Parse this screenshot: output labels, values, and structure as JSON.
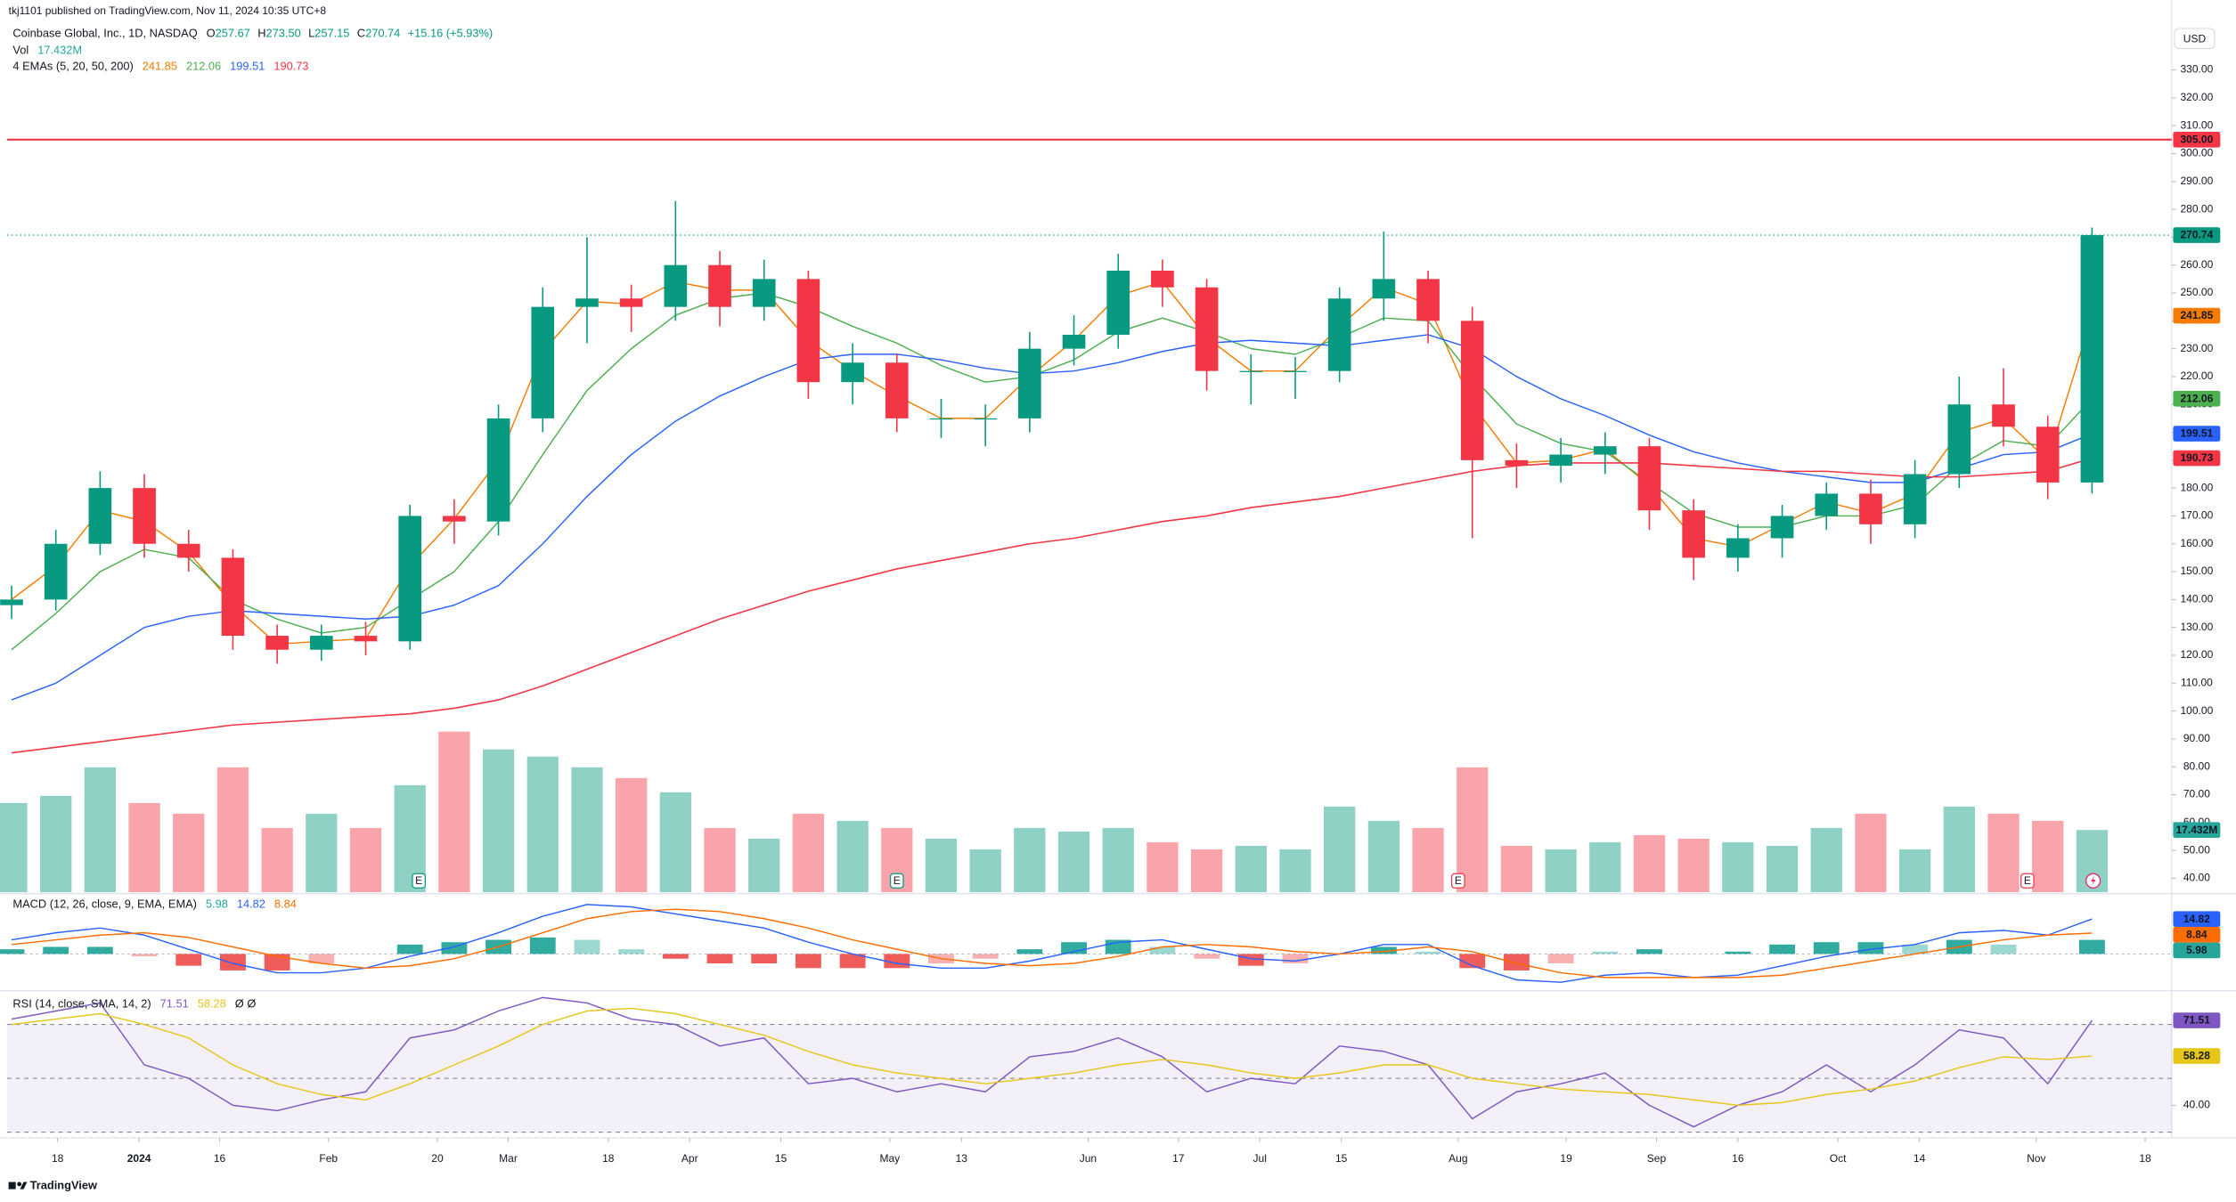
{
  "header": {
    "publisher": "tkj1101 published on TradingView.com, Nov 11, 2024 10:35 UTC+8",
    "symbol": "Coinbase Global, Inc., 1D, NASDAQ",
    "ohlc": [
      {
        "label": "O",
        "value": "257.67"
      },
      {
        "label": "H",
        "value": "273.50"
      },
      {
        "label": "L",
        "value": "257.15"
      },
      {
        "label": "C",
        "value": "270.74"
      }
    ],
    "change": "+15.16 (+5.93%)",
    "vol_label": "Vol",
    "ema_label": "4 EMAs (5, 20, 50, 200)",
    "currency": "USD",
    "brand": "TradingView"
  },
  "chart_data": [
    {
      "type": "candlestick",
      "x": [
        0,
        5,
        10,
        15,
        20,
        25,
        30,
        35,
        40,
        45,
        50,
        55,
        60,
        65,
        70,
        75,
        80,
        85,
        90,
        95,
        100,
        105,
        110,
        115,
        120,
        125,
        130,
        135,
        140,
        145,
        150,
        155,
        160,
        165,
        170,
        175,
        180,
        185,
        190,
        195,
        200,
        205,
        210,
        215,
        220,
        225,
        230,
        235
      ],
      "xlim": [
        -0.5,
        244
      ],
      "xticks": [
        {
          "value": 5.2,
          "label": "18"
        },
        {
          "value": 14.4,
          "label": "2024"
        },
        {
          "value": 23.5,
          "label": "16"
        },
        {
          "value": 35.8,
          "label": "Feb"
        },
        {
          "value": 48.1,
          "label": "20"
        },
        {
          "value": 56.1,
          "label": "Mar"
        },
        {
          "value": 67.4,
          "label": "18"
        },
        {
          "value": 76.6,
          "label": "Apr"
        },
        {
          "value": 86.9,
          "label": "15"
        },
        {
          "value": 99.2,
          "label": "May"
        },
        {
          "value": 107.3,
          "label": "13"
        },
        {
          "value": 121.6,
          "label": "Jun"
        },
        {
          "value": 131.8,
          "label": "17"
        },
        {
          "value": 141,
          "label": "Jul"
        },
        {
          "value": 150.2,
          "label": "15"
        },
        {
          "value": 163.4,
          "label": "Aug"
        },
        {
          "value": 175.6,
          "label": "19"
        },
        {
          "value": 185.8,
          "label": "Sep"
        },
        {
          "value": 195,
          "label": "16"
        },
        {
          "value": 206.3,
          "label": "Oct"
        },
        {
          "value": 215.5,
          "label": "14"
        },
        {
          "value": 228.7,
          "label": "Nov"
        },
        {
          "value": 241,
          "label": "18"
        }
      ],
      "open": [
        138,
        140,
        160,
        180,
        160,
        155,
        127,
        122,
        127,
        125,
        170,
        168,
        205,
        245,
        248,
        245,
        260,
        245,
        255,
        218,
        225,
        205,
        205,
        205,
        230,
        235,
        258,
        252,
        222,
        222,
        222,
        248,
        255,
        240,
        190,
        188,
        192,
        195,
        172,
        155,
        162,
        170,
        178,
        167,
        185,
        210,
        202,
        182
      ],
      "high": [
        145,
        165,
        186,
        185,
        165,
        158,
        131,
        131,
        132,
        174,
        176,
        210,
        252,
        270,
        253,
        283,
        265,
        262,
        258,
        232,
        228,
        212,
        210,
        236,
        242,
        264,
        262,
        255,
        228,
        227,
        252,
        272,
        258,
        245,
        196,
        198,
        200,
        198,
        176,
        167,
        174,
        182,
        183,
        190,
        220,
        223,
        206,
        273.5
      ],
      "low": [
        133,
        136,
        156,
        155,
        150,
        122,
        117,
        118,
        120,
        122,
        160,
        163,
        200,
        232,
        236,
        240,
        238,
        240,
        212,
        210,
        200,
        198,
        195,
        200,
        224,
        230,
        245,
        215,
        210,
        212,
        218,
        240,
        232,
        162,
        180,
        182,
        185,
        165,
        147,
        150,
        155,
        165,
        160,
        162,
        180,
        195,
        176,
        178
      ],
      "close": [
        140,
        160,
        180,
        160,
        155,
        127,
        122,
        127,
        125,
        170,
        168,
        205,
        245,
        248,
        245,
        260,
        245,
        255,
        218,
        225,
        205,
        205,
        205,
        230,
        235,
        258,
        252,
        222,
        222,
        222,
        248,
        255,
        240,
        190,
        188,
        192,
        195,
        172,
        155,
        162,
        170,
        178,
        167,
        185,
        210,
        202,
        182,
        270.74
      ],
      "up_color": "#089981",
      "down_color": "#f23645",
      "ylim": [
        35,
        351
      ],
      "yticks": [
        {
          "value": 40,
          "label": "40.00"
        },
        {
          "value": 50,
          "label": "50.00"
        },
        {
          "value": 60,
          "label": "60.00"
        },
        {
          "value": 70,
          "label": "70.00"
        },
        {
          "value": 80,
          "label": "80.00"
        },
        {
          "value": 90,
          "label": "90.00"
        },
        {
          "value": 100,
          "label": "100.00"
        },
        {
          "value": 110,
          "label": "110.00"
        },
        {
          "value": 120,
          "label": "120.00"
        },
        {
          "value": 130,
          "label": "130.00"
        },
        {
          "value": 140,
          "label": "140.00"
        },
        {
          "value": 150,
          "label": "150.00"
        },
        {
          "value": 160,
          "label": "160.00"
        },
        {
          "value": 170,
          "label": "170.00"
        },
        {
          "value": 180,
          "label": "180.00"
        },
        {
          "value": 190,
          "label": "190.00"
        },
        {
          "value": 200,
          "label": "200.00"
        },
        {
          "value": 210,
          "label": "210.00"
        },
        {
          "value": 220,
          "label": "220.00"
        },
        {
          "value": 230,
          "label": "230.00"
        },
        {
          "value": 240,
          "label": "240.00"
        },
        {
          "value": 250,
          "label": "250.00"
        },
        {
          "value": 260,
          "label": "260.00"
        },
        {
          "value": 270,
          "label": "270.00"
        },
        {
          "value": 280,
          "label": "280.00"
        },
        {
          "value": 290,
          "label": "290.00"
        },
        {
          "value": 300,
          "label": "300.00"
        },
        {
          "value": 310,
          "label": "310.00"
        },
        {
          "value": 320,
          "label": "320.00"
        },
        {
          "value": 330,
          "label": "330.00"
        }
      ],
      "grid": false,
      "series": [
        {
          "color": "#f57c00",
          "values": [
            140,
            152,
            172,
            168,
            157,
            138,
            124,
            125,
            126,
            152,
            169,
            190,
            229,
            247,
            246,
            254,
            251,
            251,
            233,
            222,
            213,
            205,
            205,
            220,
            233,
            249,
            254,
            234,
            222,
            222,
            238,
            252,
            246,
            210,
            189,
            190,
            194,
            181,
            162,
            159,
            167,
            175,
            171,
            178,
            200,
            205,
            190,
            241.85
          ]
        },
        {
          "color": "#4caf50",
          "values": [
            122,
            135,
            150,
            158,
            155,
            140,
            133,
            128,
            130,
            140,
            150,
            168,
            192,
            215,
            230,
            242,
            248,
            250,
            245,
            238,
            232,
            224,
            218,
            220,
            226,
            236,
            241,
            236,
            230,
            228,
            234,
            241,
            240,
            220,
            203,
            196,
            193,
            182,
            171,
            166,
            166,
            170,
            170,
            174,
            188,
            197,
            195,
            212.06
          ]
        },
        {
          "color": "#2962ff",
          "values": [
            104,
            110,
            120,
            130,
            134,
            136,
            135,
            134,
            133,
            134,
            138,
            145,
            160,
            177,
            192,
            204,
            213,
            220,
            226,
            228,
            228,
            226,
            223,
            221,
            222,
            225,
            229,
            232,
            233,
            232,
            231,
            233,
            235,
            230,
            220,
            212,
            206,
            199,
            193,
            189,
            186,
            184,
            182,
            182,
            187,
            192,
            193,
            199.51
          ]
        },
        {
          "color": "#f23645",
          "values": [
            85,
            87,
            89,
            91,
            93,
            95,
            96,
            97,
            98,
            99,
            101,
            104,
            109,
            115,
            121,
            127,
            133,
            138,
            143,
            147,
            151,
            154,
            157,
            160,
            162,
            165,
            168,
            170,
            173,
            175,
            177,
            180,
            183,
            186,
            188,
            189,
            189,
            189,
            188,
            187,
            186,
            186,
            185,
            184,
            184,
            185,
            186,
            190.73
          ]
        }
      ],
      "volume": {
        "values": [
          25,
          27,
          35,
          25,
          22,
          35,
          18,
          22,
          18,
          30,
          45,
          40,
          38,
          35,
          32,
          28,
          18,
          15,
          22,
          20,
          18,
          15,
          12,
          18,
          17,
          18,
          14,
          12,
          13,
          12,
          24,
          20,
          18,
          35,
          13,
          12,
          14,
          16,
          15,
          14,
          13,
          18,
          22,
          12,
          24,
          22,
          20,
          17.432
        ],
        "value_labels": [
          null,
          null,
          null,
          null,
          null,
          null,
          null,
          null,
          null,
          null,
          null,
          null,
          null,
          null,
          null,
          null,
          null,
          null,
          null,
          null,
          null,
          null,
          null,
          null,
          null,
          null,
          null,
          null,
          null,
          null,
          null,
          null,
          null,
          null,
          null,
          null,
          null,
          null,
          null,
          null,
          null,
          null,
          null,
          null,
          null,
          null,
          null,
          "17.432M"
        ],
        "vlim": [
          0,
          80
        ],
        "color": "#26a69a"
      },
      "levels": [
        {
          "value": 305,
          "label": "305.00",
          "color": "#f23645"
        }
      ],
      "events": [
        {
          "x": 46,
          "label": "E",
          "color": "#089981"
        },
        {
          "x": 100,
          "label": "E",
          "color": "#089981"
        },
        {
          "x": 163.4,
          "label": "E",
          "color": "#f23645"
        },
        {
          "x": 227.7,
          "label": "E",
          "color": "#f23645"
        }
      ]
    },
    {
      "type": "line",
      "title": "MACD (12, 26, close, 9, EMA, EMA)",
      "ylim": [
        -15,
        25
      ],
      "series": [
        {
          "style": "histogram",
          "color": "#26a69a",
          "negative_color": "#ef5350",
          "values": [
            2,
            3,
            3,
            -1,
            -5,
            -7,
            -7,
            -4,
            0,
            4,
            5,
            6,
            7,
            6,
            2,
            -2,
            -4,
            -4,
            -6,
            -6,
            -6,
            -4,
            -2,
            2,
            5,
            6,
            3,
            -2,
            -5,
            -4,
            0,
            3,
            1,
            -6,
            -7,
            -4,
            1,
            2,
            0,
            1,
            4,
            5,
            5,
            4,
            6,
            4,
            0,
            5.98
          ]
        },
        {
          "color": "#2962ff",
          "values": [
            6,
            9,
            11,
            8,
            2,
            -4,
            -8,
            -8,
            -6,
            -1,
            3,
            9,
            16,
            21,
            20,
            17,
            14,
            11,
            5,
            0,
            -4,
            -6,
            -6,
            -3,
            1,
            5,
            6,
            2,
            -2,
            -3,
            0,
            4,
            4,
            -5,
            -11,
            -12,
            -9,
            -8,
            -10,
            -9,
            -5,
            -1,
            2,
            4,
            9,
            10,
            8,
            14.82
          ]
        },
        {
          "color": "#ff6d00",
          "values": [
            4,
            6,
            8,
            9,
            7,
            3,
            -1,
            -4,
            -6,
            -5,
            -2,
            3,
            9,
            15,
            18,
            19,
            18,
            15,
            11,
            6,
            2,
            -2,
            -4,
            -5,
            -4,
            -1,
            3,
            4,
            3,
            1,
            0,
            1,
            3,
            1,
            -4,
            -8,
            -10,
            -10,
            -10,
            -10,
            -9,
            -6,
            -3,
            0,
            3,
            6,
            8,
            8.84
          ]
        }
      ]
    },
    {
      "type": "line",
      "title": "RSI (14, close, SMA, 14, 2)",
      "flags": "Ø Ø",
      "ylim": [
        29,
        82
      ],
      "yticks": [
        {
          "value": 40,
          "label": "40.00"
        }
      ],
      "levels": [
        70,
        50,
        30
      ],
      "band_color": "#7e57c2",
      "series": [
        {
          "color": "#7e57c2",
          "values": [
            72,
            75,
            78,
            55,
            50,
            40,
            38,
            42,
            45,
            65,
            68,
            75,
            80,
            78,
            72,
            70,
            62,
            65,
            48,
            50,
            45,
            48,
            45,
            58,
            60,
            65,
            58,
            45,
            50,
            48,
            62,
            60,
            55,
            35,
            45,
            48,
            52,
            40,
            32,
            40,
            45,
            55,
            45,
            55,
            68,
            65,
            48,
            71.51
          ]
        },
        {
          "color": "#e6c619",
          "values": [
            70,
            72,
            74,
            70,
            65,
            55,
            48,
            44,
            42,
            48,
            55,
            62,
            70,
            75,
            76,
            74,
            70,
            66,
            60,
            55,
            52,
            50,
            48,
            50,
            52,
            55,
            57,
            55,
            52,
            50,
            52,
            55,
            55,
            50,
            48,
            46,
            45,
            44,
            42,
            40,
            41,
            44,
            46,
            49,
            54,
            58,
            57,
            58.28
          ]
        }
      ]
    }
  ]
}
